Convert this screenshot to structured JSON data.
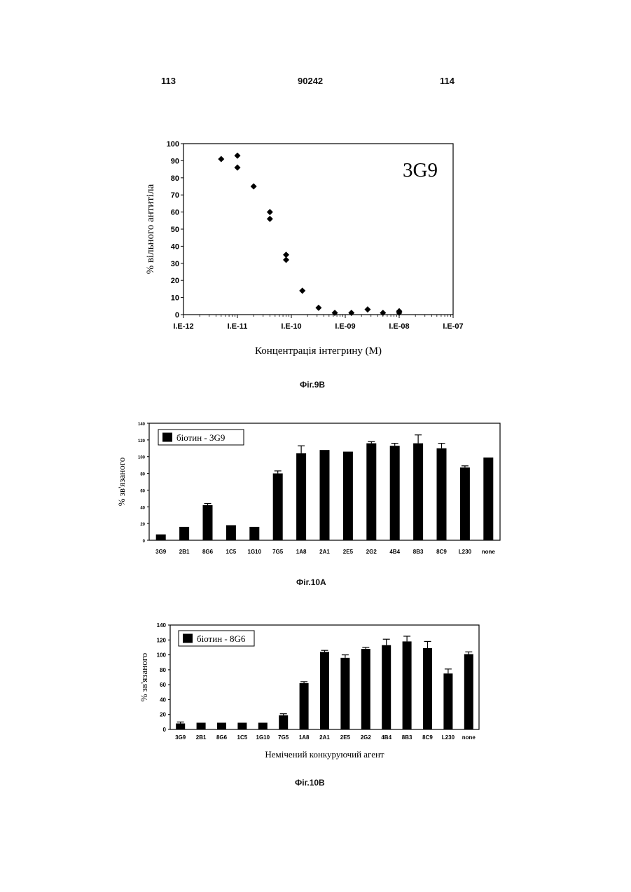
{
  "header": {
    "page_left": "113",
    "patent_number": "90242",
    "page_right": "114"
  },
  "chart_data": [
    {
      "id": "fig9b",
      "type": "scatter",
      "caption": "Фіг.9В",
      "annotation": "3G9",
      "xlabel": "Концентрація інтегрину (М)",
      "ylabel": "% вільного антитіла",
      "xscale": "log",
      "xlim": [
        1e-12,
        1e-07
      ],
      "ylim": [
        0,
        100
      ],
      "x_ticks": [
        "I.E-12",
        "I.E-11",
        "I.E-10",
        "I.E-09",
        "I.E-08",
        "I.E-07"
      ],
      "y_ticks": [
        "0",
        "10",
        "20",
        "30",
        "40",
        "50",
        "60",
        "70",
        "80",
        "90",
        "100"
      ],
      "marker": "diamond",
      "points": [
        {
          "x": 5e-12,
          "y": 91
        },
        {
          "x": 1e-11,
          "y": 93
        },
        {
          "x": 1e-11,
          "y": 86
        },
        {
          "x": 2e-11,
          "y": 75
        },
        {
          "x": 4e-11,
          "y": 60
        },
        {
          "x": 4e-11,
          "y": 56
        },
        {
          "x": 8e-11,
          "y": 35
        },
        {
          "x": 8e-11,
          "y": 32
        },
        {
          "x": 1.6e-10,
          "y": 14
        },
        {
          "x": 3.2e-10,
          "y": 4
        },
        {
          "x": 6.4e-10,
          "y": 1
        },
        {
          "x": 1.3e-09,
          "y": 1
        },
        {
          "x": 2.6e-09,
          "y": 3
        },
        {
          "x": 5e-09,
          "y": 1
        },
        {
          "x": 1e-08,
          "y": 2
        },
        {
          "x": 1e-08,
          "y": 1
        }
      ],
      "grid": false
    },
    {
      "id": "fig10a",
      "type": "bar",
      "caption": "Фіг.10А",
      "legend": "біотин - 3G9",
      "legend_position": "top-left",
      "ylabel": "% зв'язаного",
      "ylim": [
        0,
        140
      ],
      "y_ticks": [
        "0",
        "20",
        "40",
        "60",
        "80",
        "100",
        "120",
        "140"
      ],
      "categories": [
        "3G9",
        "2B1",
        "8G6",
        "1C5",
        "1G10",
        "7G5",
        "1A8",
        "2A1",
        "2E5",
        "2G2",
        "4B4",
        "8B3",
        "8C9",
        "L230",
        "none"
      ],
      "values": [
        7,
        16,
        42,
        18,
        16,
        80,
        104,
        108,
        106,
        116,
        113,
        116,
        110,
        87,
        99
      ],
      "errors": [
        0,
        0,
        2,
        0,
        0,
        3,
        9,
        0,
        0,
        2,
        3,
        10,
        6,
        2,
        0
      ],
      "grid": false
    },
    {
      "id": "fig10b",
      "type": "bar",
      "caption": "Фіг.10В",
      "legend": "біотин - 8G6",
      "legend_position": "top-left",
      "xlabel": "Немічений конкуруючий агент",
      "ylabel": "% зв'язаного",
      "ylim": [
        0,
        140
      ],
      "y_ticks": [
        "0",
        "20",
        "40",
        "60",
        "80",
        "100",
        "120",
        "140"
      ],
      "categories": [
        "3G9",
        "2B1",
        "8G6",
        "1C5",
        "1G10",
        "7G5",
        "1A8",
        "2A1",
        "2E5",
        "2G2",
        "4B4",
        "8B3",
        "8C9",
        "L230",
        "none"
      ],
      "values": [
        8,
        9,
        9,
        9,
        9,
        19,
        62,
        104,
        96,
        108,
        113,
        118,
        109,
        75,
        101
      ],
      "errors": [
        2,
        0,
        0,
        0,
        0,
        2,
        2,
        2,
        4,
        2,
        8,
        7,
        9,
        6,
        3
      ],
      "grid": false
    }
  ]
}
